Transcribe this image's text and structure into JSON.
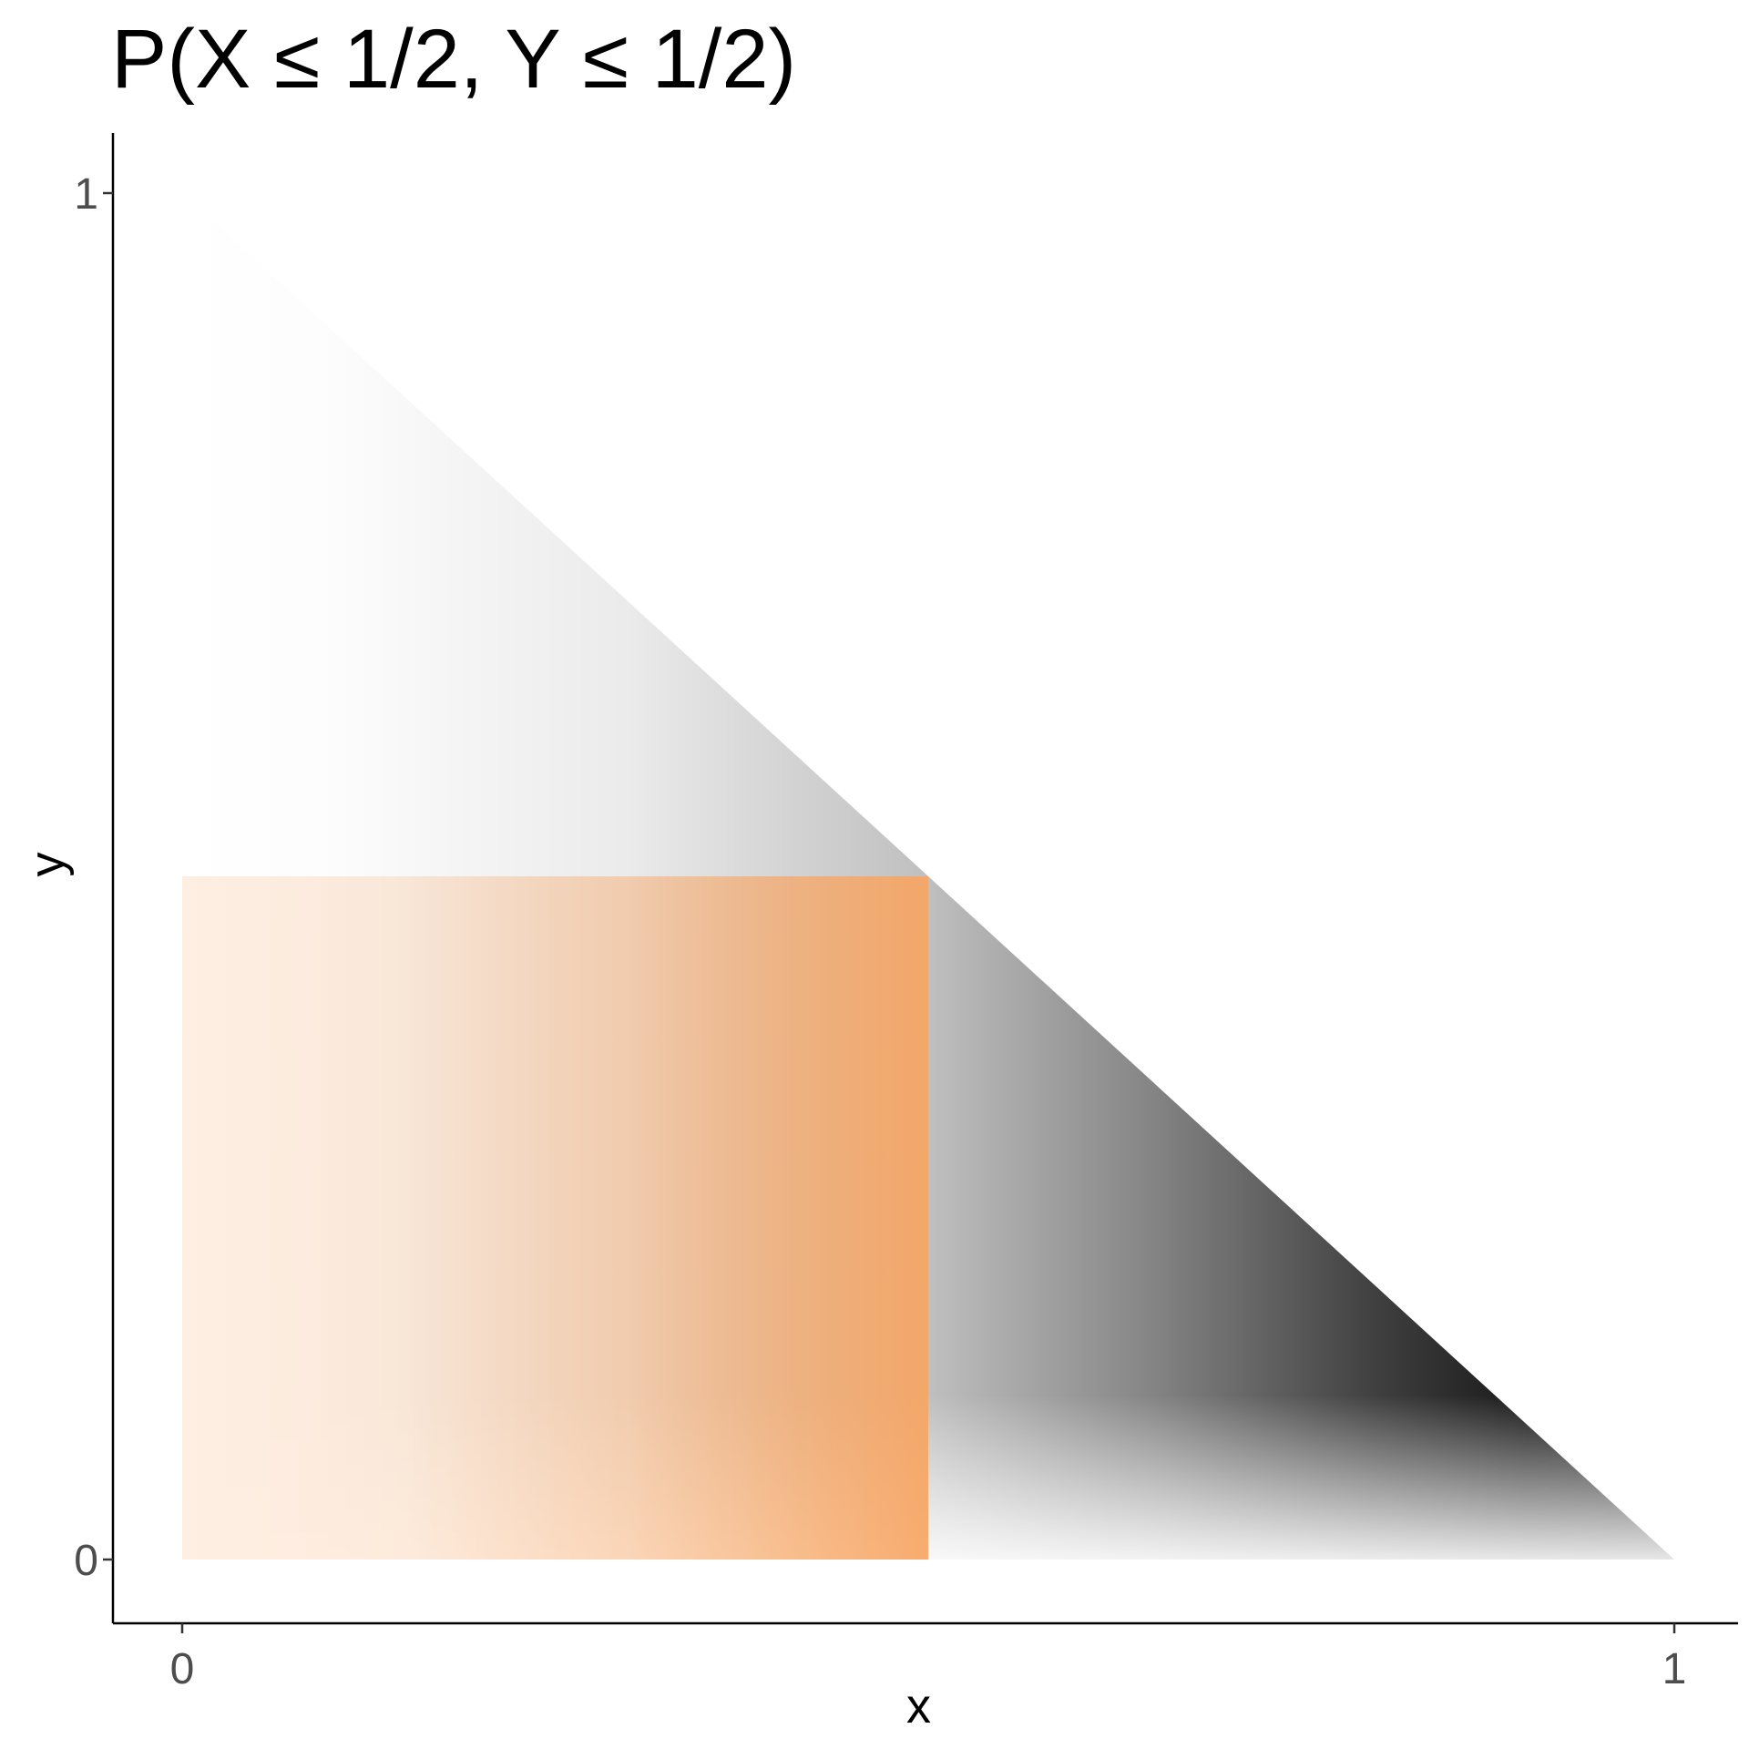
{
  "chart_data": {
    "type": "scatter",
    "title": "P(X ≤ 1/2, Y ≤ 1/2)",
    "xlabel": "x",
    "ylabel": "y",
    "xlim": [
      -0.045,
      1.045
    ],
    "ylim": [
      -0.045,
      1.045
    ],
    "x_ticks": [
      {
        "value": 0,
        "label": "0"
      },
      {
        "value": 1,
        "label": "1"
      }
    ],
    "y_ticks": [
      {
        "value": 0,
        "label": "0"
      },
      {
        "value": 1,
        "label": "1"
      }
    ],
    "grid": false,
    "legend": "none",
    "regions": [
      {
        "name": "support",
        "description_values": {
          "x_min": 0,
          "y_min": 0,
          "constraint": "x + y <= 1"
        },
        "fill_shading": "alpha increases with x",
        "color": "#000000"
      },
      {
        "name": "event",
        "bounds": {
          "x": [
            0,
            0.5
          ],
          "y": [
            0,
            0.5
          ]
        },
        "fill_shading": "alpha increases with x",
        "color": "#f8a562"
      }
    ],
    "grid_step": 0.01
  }
}
